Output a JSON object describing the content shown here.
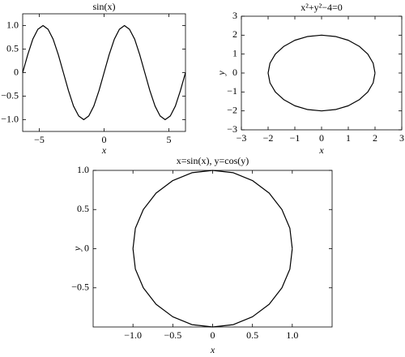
{
  "chart_data": [
    {
      "type": "line",
      "title": "sin(x)",
      "xlabel": "x",
      "x": [
        -6.28,
        -5.89,
        -5.5,
        -5.11,
        -4.71,
        -4.32,
        -3.93,
        -3.53,
        -3.14,
        -2.75,
        -2.36,
        -1.96,
        -1.57,
        -1.18,
        -0.79,
        -0.39,
        0,
        0.39,
        0.79,
        1.18,
        1.57,
        1.96,
        2.36,
        2.75,
        3.14,
        3.53,
        3.93,
        4.32,
        4.71,
        5.11,
        5.5,
        5.89,
        6.28
      ],
      "values": [
        0,
        0.38,
        0.71,
        0.92,
        1,
        0.92,
        0.71,
        0.38,
        0,
        -0.38,
        -0.71,
        -0.92,
        -1,
        -0.92,
        -0.71,
        -0.38,
        0,
        0.38,
        0.71,
        0.92,
        1,
        0.92,
        0.71,
        0.38,
        0,
        -0.38,
        -0.71,
        -0.92,
        -1,
        -0.92,
        -0.71,
        -0.38,
        0
      ],
      "color": "#000000",
      "xlim": [
        -6.28,
        6.28
      ],
      "ylim": [
        -1.25,
        1.25
      ],
      "xticks": [
        {
          "value": -5,
          "label": "−5"
        },
        0,
        5
      ],
      "yticks": [
        {
          "value": -1,
          "label": "−1.0"
        },
        {
          "value": -0.5,
          "label": "−0.5"
        },
        0,
        0.5,
        {
          "value": 1,
          "label": "1.0"
        }
      ]
    },
    {
      "type": "line",
      "title": "x²+y²−4=0",
      "xlabel": "x",
      "ylabel": "y",
      "x": [
        2,
        1.93,
        1.73,
        1.41,
        1,
        0.52,
        0,
        -0.52,
        -1,
        -1.41,
        -1.73,
        -1.93,
        -2,
        -1.93,
        -1.73,
        -1.41,
        -1,
        -0.52,
        0,
        0.52,
        1,
        1.41,
        1.73,
        1.93,
        2
      ],
      "values": [
        0,
        0.52,
        1,
        1.41,
        1.73,
        1.93,
        2,
        1.93,
        1.73,
        1.41,
        1,
        0.52,
        0,
        -0.52,
        -1,
        -1.41,
        -1.73,
        -1.93,
        -2,
        -1.93,
        -1.73,
        -1.41,
        -1,
        -0.52,
        0
      ],
      "color": "#000000",
      "xlim": [
        -3,
        3
      ],
      "ylim": [
        -3,
        3
      ],
      "xticks": [
        {
          "value": -3,
          "label": "−3"
        },
        {
          "value": -2,
          "label": "−2"
        },
        {
          "value": -1,
          "label": "−1"
        },
        0,
        1,
        2,
        3
      ],
      "yticks": [
        {
          "value": -3,
          "label": "−3"
        },
        {
          "value": -2,
          "label": "−2"
        },
        {
          "value": -1,
          "label": "−1"
        },
        0,
        1,
        2,
        3
      ]
    },
    {
      "type": "line",
      "title": "x=sin(x), y=cos(y)",
      "xlabel": "x",
      "ylabel": "y",
      "x": [
        1,
        0.97,
        0.87,
        0.71,
        0.5,
        0.26,
        0,
        -0.26,
        -0.5,
        -0.71,
        -0.87,
        -0.97,
        -1,
        -0.97,
        -0.87,
        -0.71,
        -0.5,
        -0.26,
        0,
        0.26,
        0.5,
        0.71,
        0.87,
        0.97,
        1
      ],
      "values": [
        0,
        0.26,
        0.5,
        0.71,
        0.87,
        0.97,
        1,
        0.97,
        0.87,
        0.71,
        0.5,
        0.26,
        0,
        -0.26,
        -0.5,
        -0.71,
        -0.87,
        -0.97,
        -1,
        -0.97,
        -0.87,
        -0.71,
        -0.5,
        -0.26,
        0
      ],
      "color": "#000000",
      "xlim": [
        -1.5,
        1.5
      ],
      "ylim": [
        -1,
        1
      ],
      "xticks": [
        {
          "value": -1,
          "label": "−1.0"
        },
        {
          "value": -0.5,
          "label": "−0.5"
        },
        0,
        0.5,
        {
          "value": 1,
          "label": "1.0"
        }
      ],
      "yticks": [
        {
          "value": -0.5,
          "label": "−0.5"
        },
        0,
        0.5,
        {
          "value": 1,
          "label": "1.0"
        }
      ]
    }
  ]
}
